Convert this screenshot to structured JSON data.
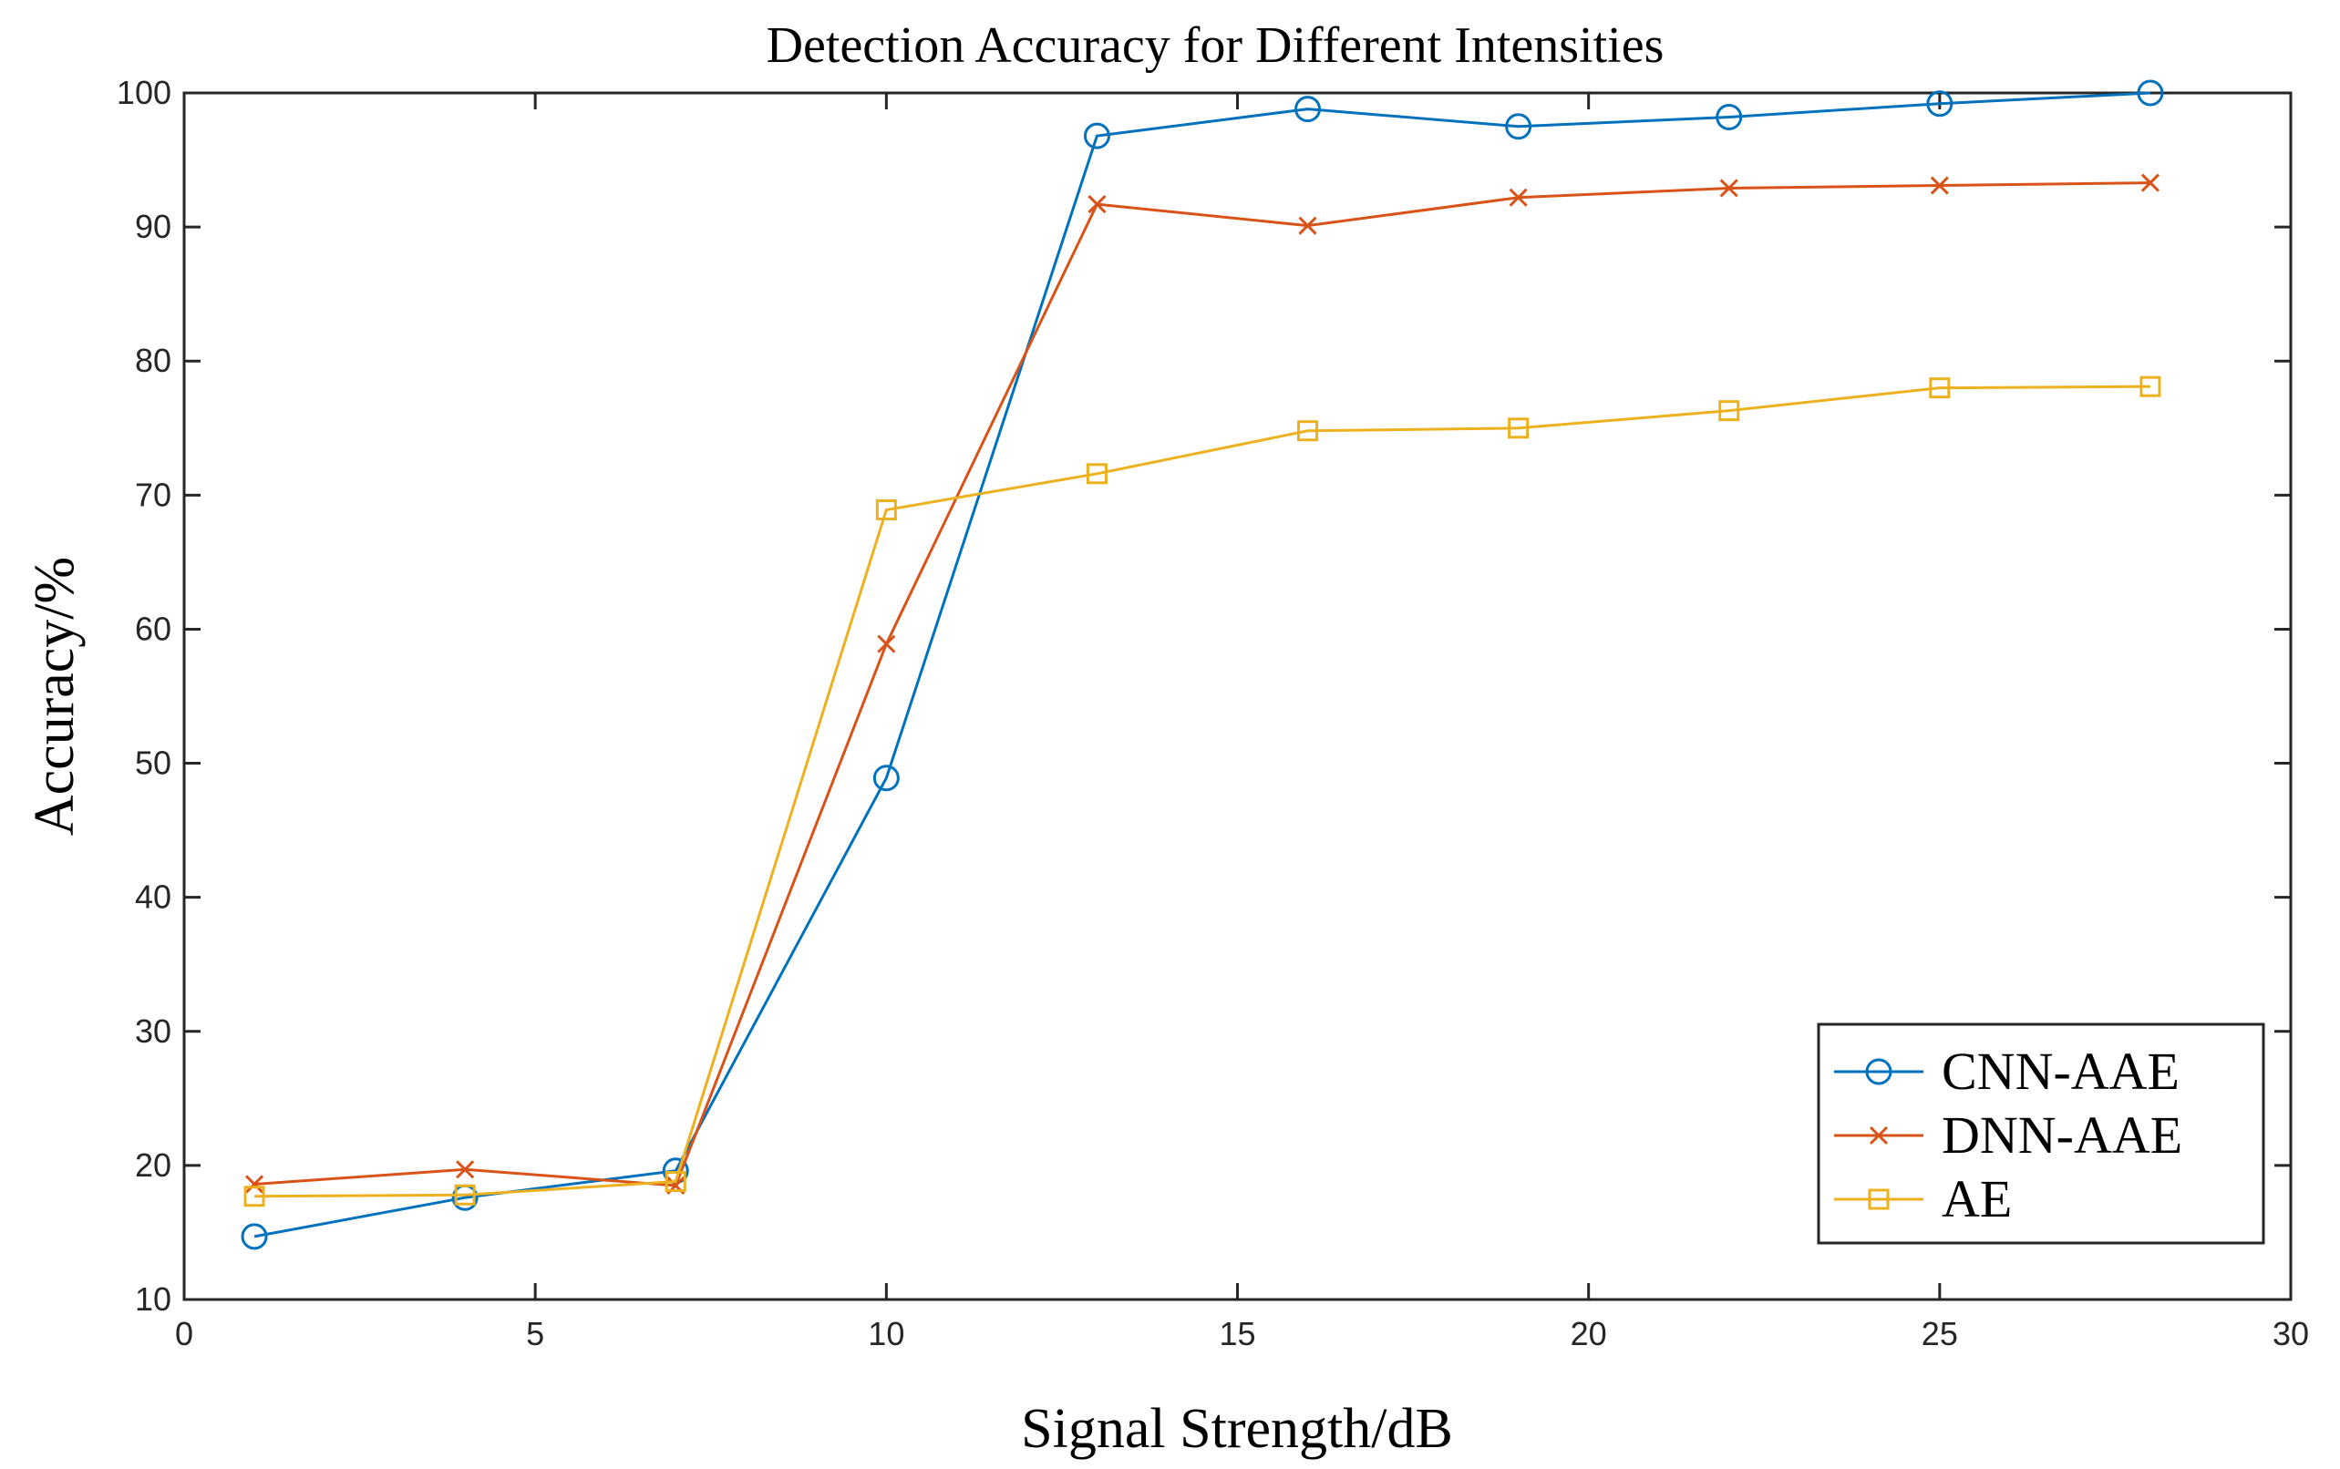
{
  "chart_data": {
    "type": "line",
    "title": "Detection Accuracy for Different Intensities",
    "xlabel": "Signal Strength/dB",
    "ylabel": "Accuracy/%",
    "xlim": [
      0,
      30
    ],
    "ylim": [
      10,
      100
    ],
    "xticks": [
      0,
      5,
      10,
      15,
      20,
      25,
      30
    ],
    "yticks": [
      10,
      20,
      30,
      40,
      50,
      60,
      70,
      80,
      90,
      100
    ],
    "grid": false,
    "legend_position": "bottom-right",
    "x": [
      1,
      4,
      7,
      10,
      13,
      16,
      19,
      22,
      25,
      28
    ],
    "series": [
      {
        "name": "CNN-AAE",
        "marker": "circle",
        "color": "#0072BD",
        "values": [
          14.7,
          17.6,
          19.6,
          48.9,
          96.8,
          98.8,
          97.5,
          98.2,
          99.2,
          100.0
        ]
      },
      {
        "name": "DNN-AAE",
        "marker": "x",
        "color": "#D95319",
        "values": [
          18.6,
          19.7,
          18.5,
          58.9,
          91.7,
          90.1,
          92.2,
          92.9,
          93.1,
          93.3
        ]
      },
      {
        "name": "AE",
        "marker": "square",
        "color": "#EDB120",
        "values": [
          17.7,
          17.8,
          18.8,
          68.9,
          71.6,
          74.8,
          75.0,
          76.3,
          78.0,
          78.1
        ]
      }
    ]
  }
}
